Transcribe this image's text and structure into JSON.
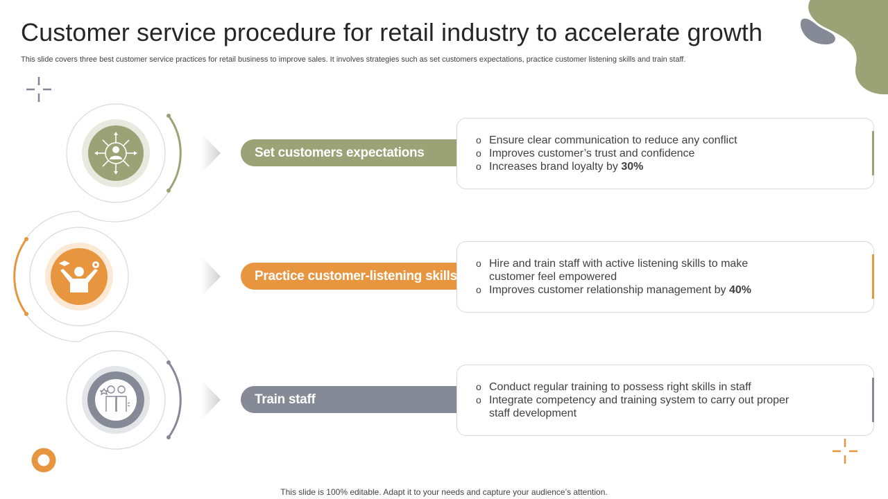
{
  "title": "Customer service procedure for retail industry to accelerate growth",
  "subtitle": "This slide covers three best customer service practices for retail business to improve sales. It involves strategies such as set customers expectations, practice customer listening skills and train staff.",
  "footer": "This slide is 100% editable. Adapt it to your needs and capture your audience’s attention.",
  "colors": {
    "green": "#9aa276",
    "orange": "#e8953f",
    "gray": "#858a96",
    "olive_blob": "#9aa276",
    "slate_blob": "#858a96"
  },
  "steps": [
    {
      "label": "Set customers expectations",
      "icon": "customer-network-icon",
      "bullets": [
        {
          "text": "Ensure clear communication to reduce any conflict",
          "bold": ""
        },
        {
          "text": "Improves customer’s trust and confidence",
          "bold": ""
        },
        {
          "text": "Increases brand loyalty by ",
          "bold": "30%"
        }
      ]
    },
    {
      "label": "Practice customer-listening skills",
      "icon": "person-skills-icon",
      "bullets": [
        {
          "text": "Hire and train staff with active listening skills to make customer feel empowered",
          "bold": ""
        },
        {
          "text": "Improves customer relationship management by ",
          "bold": "40%"
        }
      ]
    },
    {
      "label": "Train staff",
      "icon": "staff-training-icon",
      "bullets": [
        {
          "text": "Conduct regular training to possess right skills in  staff",
          "bold": ""
        },
        {
          "text": "Integrate competency and training system to carry out proper staff development",
          "bold": ""
        }
      ]
    }
  ]
}
